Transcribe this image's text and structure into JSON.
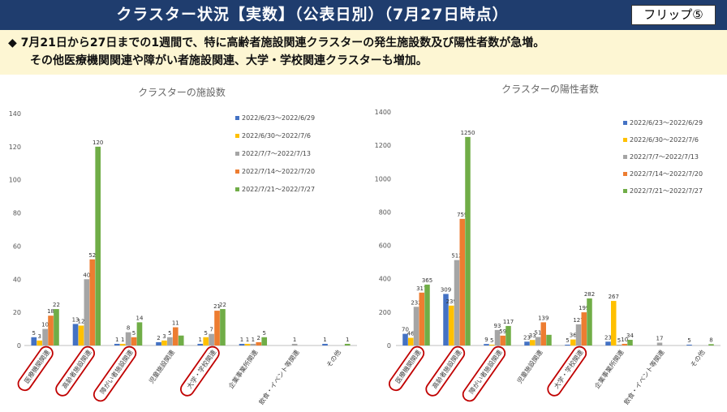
{
  "header": {
    "title": "クラスター状況【実数】（公表日別）（7月27日時点）",
    "flip_label": "フリップ⑤"
  },
  "summary": {
    "line1": "◆  7月21日から27日までの1週間で、特に高齢者施設関連クラスターの発生施設数及び陽性者数が急増。",
    "line2": "その他医療機関関連や障がい者施設関連、大学・学校関連クラスターも増加。"
  },
  "colors": {
    "header_bg": "#1f3d6e",
    "summary_bg": "#fdf6d3",
    "highlight": "#c00000",
    "series": [
      "#4472c4",
      "#ffc000",
      "#a5a5a5",
      "#ed7d31",
      "#70ad47"
    ]
  },
  "chart_data": [
    {
      "type": "bar",
      "title": "クラスターの施設数",
      "categories": [
        "医療機関関連",
        "高齢者施設関連",
        "障がい者施設関連",
        "児童施設関連",
        "大学・学校関連",
        "企業事業所関連",
        "飲食・イベント等関連",
        "その他"
      ],
      "highlighted": [
        "医療機関関連",
        "高齢者施設関連",
        "障がい者施設関連",
        "大学・学校関連"
      ],
      "ylim": [
        0,
        140
      ],
      "yticks": [
        0,
        20,
        40,
        60,
        80,
        100,
        120,
        140
      ],
      "series": [
        {
          "name": "2022/6/23～2022/6/29",
          "values": [
            5,
            13,
            1,
            2,
            1,
            1,
            0,
            1
          ]
        },
        {
          "name": "2022/6/30～2022/7/6",
          "values": [
            3,
            12,
            1,
            3,
            5,
            1,
            0,
            0
          ]
        },
        {
          "name": "2022/7/7～2022/7/13",
          "values": [
            10,
            40,
            8,
            5,
            7,
            1,
            1,
            0
          ]
        },
        {
          "name": "2022/7/14～2022/7/20",
          "values": [
            18,
            52,
            5,
            11,
            21,
            2,
            0,
            0
          ]
        },
        {
          "name": "2022/7/21～2022/7/27",
          "values": [
            22,
            120,
            14,
            6,
            22,
            5,
            0,
            1
          ]
        }
      ],
      "data_labels": [
        [
          "5",
          "13",
          "1",
          "2",
          "1",
          "1",
          "",
          "1"
        ],
        [
          "3",
          "12",
          "1",
          "3",
          "5",
          "1",
          "",
          ""
        ],
        [
          "10",
          "40",
          "8",
          "5",
          "7",
          "1",
          "1",
          ""
        ],
        [
          "18",
          "52",
          "5",
          "11",
          "21",
          "2",
          "",
          ""
        ],
        [
          "22",
          "120",
          "14",
          "",
          "22",
          "5",
          "",
          "1"
        ]
      ],
      "legend": "right-top",
      "grid": false
    },
    {
      "type": "bar",
      "title": "クラスターの陽性者数",
      "categories": [
        "医療機関関連",
        "高齢者施設関連",
        "障がい者施設関連",
        "児童施設関連",
        "大学・学校関連",
        "企業事業所関連",
        "飲食・イベント等関連",
        "その他"
      ],
      "highlighted": [
        "医療機関関連",
        "高齢者施設関連",
        "障がい者施設関連",
        "大学・学校関連"
      ],
      "ylim": [
        0,
        1400
      ],
      "yticks": [
        0,
        200,
        400,
        600,
        800,
        1000,
        1200,
        1400
      ],
      "series": [
        {
          "name": "2022/6/23～2022/6/29",
          "values": [
            70,
            309,
            9,
            23,
            5,
            23,
            0,
            5
          ]
        },
        {
          "name": "2022/6/30～2022/7/6",
          "values": [
            46,
            239,
            5,
            33,
            36,
            267,
            0,
            0
          ]
        },
        {
          "name": "2022/7/7～2022/7/13",
          "values": [
            232,
            512,
            93,
            51,
            127,
            5,
            17,
            0
          ]
        },
        {
          "name": "2022/7/14～2022/7/20",
          "values": [
            317,
            759,
            59,
            139,
            199,
            10,
            0,
            0
          ]
        },
        {
          "name": "2022/7/21～2022/7/27",
          "values": [
            365,
            1250,
            117,
            64,
            282,
            34,
            0,
            8
          ]
        }
      ],
      "data_labels": [
        [
          "70",
          "309",
          "9",
          "23",
          "5",
          "23",
          "",
          "5"
        ],
        [
          "46",
          "239",
          "5",
          "33",
          "36",
          "267",
          "",
          ""
        ],
        [
          "232",
          "512",
          "93",
          "51",
          "127",
          "5",
          "17",
          ""
        ],
        [
          "317",
          "759",
          "59",
          "139",
          "199",
          "10",
          "",
          ""
        ],
        [
          "365",
          "1250",
          "117",
          "",
          "282",
          "34",
          "",
          "8"
        ]
      ],
      "legend": "right-top",
      "grid": false
    }
  ]
}
